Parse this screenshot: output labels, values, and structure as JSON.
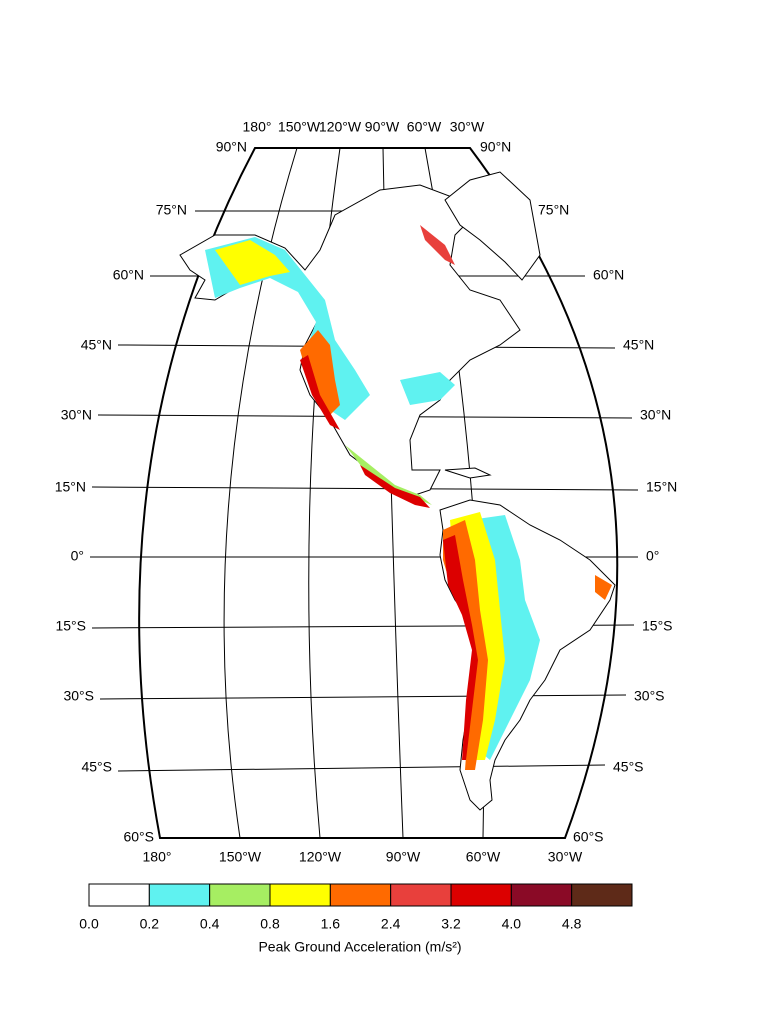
{
  "map": {
    "latitude_labels": {
      "left": [
        "90°N",
        "75°N",
        "60°N",
        "45°N",
        "30°N",
        "15°N",
        "0°",
        "15°S",
        "30°S",
        "45°S",
        "60°S"
      ],
      "right": [
        "90°N",
        "75°N",
        "60°N",
        "45°N",
        "30°N",
        "15°N",
        "0°",
        "15°S",
        "30°S",
        "45°S",
        "60°S"
      ]
    },
    "longitude_labels": {
      "top": [
        "180°",
        "150°W",
        "120°W",
        "90°W",
        "60°W",
        "30°W"
      ],
      "bottom": [
        "180°",
        "150°W",
        "120°W",
        "90°W",
        "60°W",
        "30°W"
      ]
    }
  },
  "colorbar": {
    "tick_labels": [
      "0.0",
      "0.2",
      "0.4",
      "0.8",
      "1.6",
      "2.4",
      "3.2",
      "4.0",
      "4.8"
    ],
    "colors": [
      "#ffffff",
      "#5ff2f0",
      "#a6ee62",
      "#ffff00",
      "#ff6a00",
      "#e8403c",
      "#dc0000",
      "#8a0a26",
      "#5e2a18"
    ],
    "label": "Peak Ground Acceleration (m/s²)"
  }
}
